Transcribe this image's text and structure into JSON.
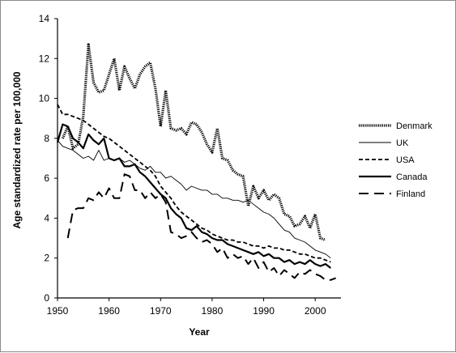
{
  "chart_data": {
    "type": "line",
    "xlabel": "Year",
    "ylabel": "Age standardized rate per 100,000",
    "xlim": [
      1950,
      2005
    ],
    "ylim": [
      0,
      14
    ],
    "x_ticks": [
      "1950",
      "1960",
      "1970",
      "1980",
      "1990",
      "2000"
    ],
    "y_ticks": [
      "0",
      "2",
      "4",
      "6",
      "8",
      "10",
      "12",
      "14"
    ],
    "grid": false,
    "legend_position": "right",
    "series": [
      {
        "name": "Denmark",
        "style": "dotted-thick",
        "color": "#000000",
        "x": [
          1951,
          1952,
          1953,
          1954,
          1955,
          1956,
          1957,
          1958,
          1959,
          1960,
          1961,
          1962,
          1963,
          1964,
          1965,
          1966,
          1967,
          1968,
          1969,
          1970,
          1971,
          1972,
          1973,
          1974,
          1975,
          1976,
          1977,
          1978,
          1979,
          1980,
          1981,
          1982,
          1983,
          1984,
          1985,
          1986,
          1987,
          1988,
          1989,
          1990,
          1991,
          1992,
          1993,
          1994,
          1995,
          1996,
          1997,
          1998,
          1999,
          2000,
          2001,
          2002
        ],
        "values": [
          8.0,
          8.6,
          7.5,
          7.7,
          9.1,
          12.7,
          10.8,
          10.3,
          10.4,
          11.2,
          12.0,
          10.4,
          11.6,
          11.0,
          10.5,
          11.2,
          11.6,
          11.8,
          10.5,
          8.6,
          10.4,
          8.5,
          8.4,
          8.5,
          8.2,
          8.8,
          8.7,
          8.3,
          7.7,
          7.3,
          8.5,
          7.0,
          6.9,
          6.4,
          6.2,
          6.1,
          4.6,
          5.6,
          5.0,
          5.4,
          4.9,
          5.2,
          5.0,
          4.2,
          4.1,
          3.6,
          3.7,
          4.1,
          3.5,
          4.2,
          3.0,
          2.9
        ]
      },
      {
        "name": "UK",
        "style": "thin",
        "color": "#000000",
        "x": [
          1950,
          1951,
          1952,
          1953,
          1954,
          1955,
          1956,
          1957,
          1958,
          1959,
          1960,
          1961,
          1962,
          1963,
          1964,
          1965,
          1966,
          1967,
          1968,
          1969,
          1970,
          1971,
          1972,
          1973,
          1974,
          1975,
          1976,
          1977,
          1978,
          1979,
          1980,
          1981,
          1982,
          1983,
          1984,
          1985,
          1986,
          1987,
          1988,
          1989,
          1990,
          1991,
          1992,
          1993,
          1994,
          1995,
          1996,
          1997,
          1998,
          1999,
          2000,
          2001,
          2002,
          2003
        ],
        "values": [
          7.9,
          7.6,
          7.5,
          7.4,
          7.2,
          7.0,
          7.1,
          6.9,
          7.4,
          6.9,
          7.0,
          6.9,
          7.0,
          6.8,
          6.9,
          6.7,
          6.5,
          6.4,
          6.6,
          6.3,
          6.3,
          6.0,
          6.1,
          5.9,
          5.7,
          5.4,
          5.6,
          5.5,
          5.4,
          5.4,
          5.2,
          5.2,
          5.0,
          5.0,
          4.9,
          4.9,
          4.8,
          4.9,
          4.7,
          4.5,
          4.3,
          4.2,
          4.0,
          3.7,
          3.4,
          3.3,
          3.0,
          2.9,
          2.8,
          2.6,
          2.4,
          2.3,
          2.2,
          2.0
        ]
      },
      {
        "name": "USA",
        "style": "dashed",
        "color": "#000000",
        "x": [
          1950,
          1951,
          1952,
          1953,
          1954,
          1955,
          1956,
          1957,
          1958,
          1959,
          1960,
          1961,
          1962,
          1963,
          1964,
          1965,
          1966,
          1967,
          1968,
          1969,
          1970,
          1971,
          1972,
          1973,
          1974,
          1975,
          1976,
          1977,
          1978,
          1979,
          1980,
          1981,
          1982,
          1983,
          1984,
          1985,
          1986,
          1987,
          1988,
          1989,
          1990,
          1991,
          1992,
          1993,
          1994,
          1995,
          1996,
          1997,
          1998,
          1999,
          2000,
          2001,
          2002,
          2003
        ],
        "values": [
          9.7,
          9.2,
          9.2,
          9.1,
          9.0,
          8.9,
          8.7,
          8.5,
          8.3,
          8.1,
          8.0,
          7.8,
          7.6,
          7.4,
          7.2,
          7.0,
          6.8,
          6.6,
          6.4,
          6.1,
          5.6,
          5.3,
          5.0,
          4.6,
          4.3,
          4.1,
          3.9,
          3.7,
          3.5,
          3.4,
          3.2,
          3.1,
          3.0,
          2.9,
          2.9,
          2.8,
          2.8,
          2.7,
          2.6,
          2.6,
          2.5,
          2.6,
          2.5,
          2.5,
          2.4,
          2.4,
          2.3,
          2.2,
          2.2,
          2.1,
          2.0,
          2.0,
          1.9,
          1.8
        ]
      },
      {
        "name": "Canada",
        "style": "solid-thick",
        "color": "#000000",
        "x": [
          1950,
          1951,
          1952,
          1953,
          1954,
          1955,
          1956,
          1957,
          1958,
          1959,
          1960,
          1961,
          1962,
          1963,
          1964,
          1965,
          1966,
          1967,
          1968,
          1969,
          1970,
          1971,
          1972,
          1973,
          1974,
          1975,
          1976,
          1977,
          1978,
          1979,
          1980,
          1981,
          1982,
          1983,
          1984,
          1985,
          1986,
          1987,
          1988,
          1989,
          1990,
          1991,
          1992,
          1993,
          1994,
          1995,
          1996,
          1997,
          1998,
          1999,
          2000,
          2001,
          2002,
          2003
        ],
        "values": [
          7.8,
          8.7,
          8.6,
          8.0,
          7.8,
          7.5,
          8.2,
          7.9,
          7.7,
          8.0,
          7.0,
          6.9,
          7.0,
          6.6,
          6.6,
          6.7,
          6.3,
          6.1,
          5.8,
          5.5,
          5.2,
          5.0,
          4.5,
          4.2,
          4.0,
          3.5,
          3.4,
          3.6,
          3.3,
          3.2,
          3.0,
          2.9,
          2.9,
          2.7,
          2.6,
          2.5,
          2.4,
          2.3,
          2.2,
          2.3,
          2.1,
          2.2,
          2.0,
          2.0,
          1.8,
          1.9,
          1.7,
          1.8,
          1.7,
          1.9,
          1.7,
          1.6,
          1.7,
          1.5
        ]
      },
      {
        "name": "Finland",
        "style": "long-dash",
        "color": "#000000",
        "x": [
          1952,
          1953,
          1954,
          1955,
          1956,
          1957,
          1958,
          1959,
          1960,
          1961,
          1962,
          1963,
          1964,
          1965,
          1966,
          1967,
          1968,
          1969,
          1970,
          1971,
          1972,
          1973,
          1974,
          1975,
          1976,
          1977,
          1978,
          1979,
          1980,
          1981,
          1982,
          1983,
          1984,
          1985,
          1986,
          1987,
          1988,
          1989,
          1990,
          1991,
          1992,
          1993,
          1994,
          1995,
          1996,
          1997,
          1998,
          1999,
          2000,
          2001,
          2002,
          2003,
          2004
        ],
        "values": [
          3.0,
          4.4,
          4.5,
          4.5,
          5.0,
          4.9,
          5.3,
          5.0,
          5.5,
          5.0,
          5.0,
          6.2,
          6.1,
          5.4,
          5.4,
          5.0,
          5.3,
          5.0,
          5.2,
          4.8,
          3.3,
          3.2,
          3.0,
          3.1,
          3.3,
          3.0,
          2.8,
          2.9,
          2.7,
          2.3,
          2.5,
          2.0,
          2.2,
          2.0,
          2.1,
          1.7,
          2.0,
          1.5,
          1.8,
          1.3,
          1.5,
          1.1,
          1.4,
          1.2,
          1.0,
          1.3,
          1.2,
          1.4,
          1.2,
          1.1,
          0.9,
          0.9,
          1.0
        ]
      }
    ]
  }
}
